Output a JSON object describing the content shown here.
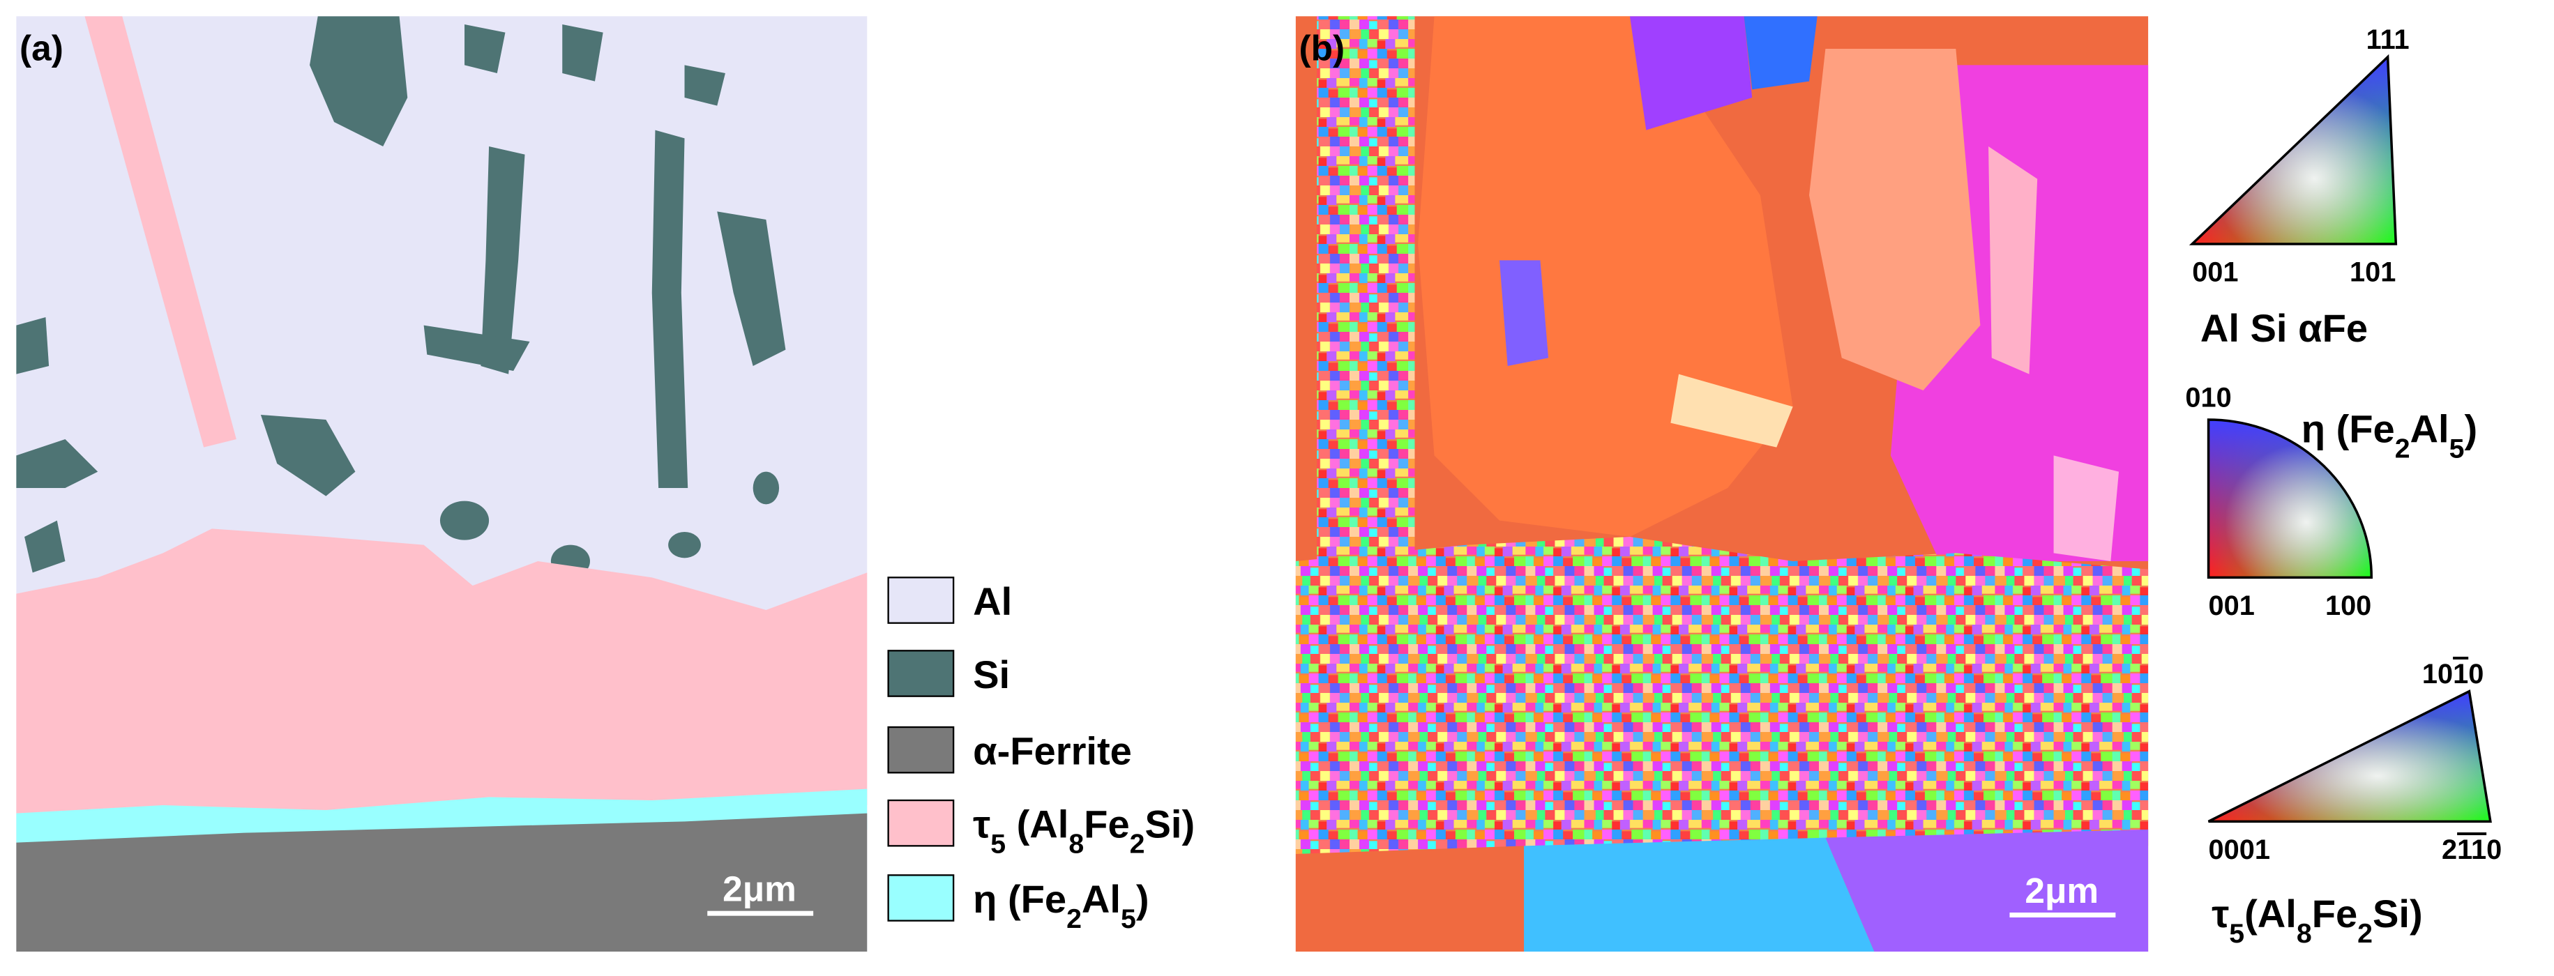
{
  "panel_a": {
    "label": "(a)",
    "scale_bar": "2μm"
  },
  "legend": [
    {
      "text": [
        "Al"
      ]
    },
    {
      "text": [
        "Si"
      ]
    },
    {
      "text": [
        "α-Ferrite"
      ]
    },
    {
      "text": [
        "τ",
        "5",
        " (Al",
        "8",
        "Fe",
        "2",
        "Si)"
      ]
    },
    {
      "text": [
        "η (Fe",
        "2",
        "Al",
        "5",
        ")"
      ]
    }
  ],
  "panel_b": {
    "label": "(b)",
    "scale_bar": "2μm"
  },
  "keys": [
    {
      "top": [
        "111"
      ],
      "left": [
        "001"
      ],
      "right": [
        "101"
      ],
      "caption": [
        "Al  Si  αFe"
      ]
    },
    {
      "top": [
        "010"
      ],
      "left": [
        "001"
      ],
      "right": [
        "100"
      ],
      "caption": [
        "η (Fe",
        "2",
        "Al",
        "5",
        ")"
      ]
    },
    {
      "top": [
        "10",
        "1",
        "0"
      ],
      "left": [
        "0001"
      ],
      "right": [
        "2",
        "11",
        "0"
      ],
      "caption": [
        "τ",
        "5",
        "(Al",
        "8",
        "Fe",
        "2",
        "Si)"
      ]
    }
  ]
}
